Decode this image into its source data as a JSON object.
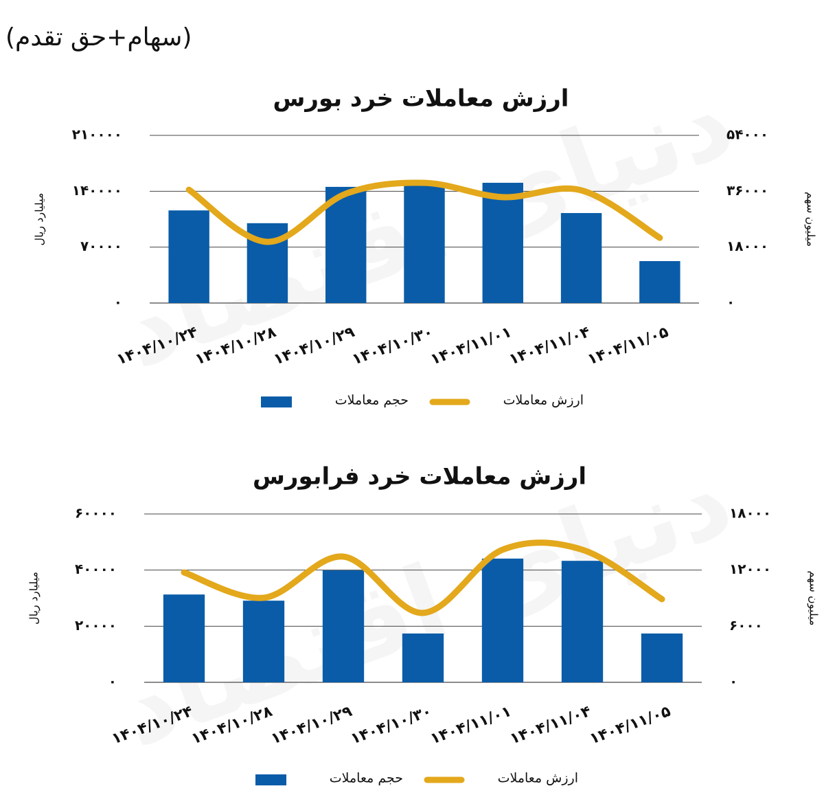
{
  "header": {
    "title": "(سهام+حق تقدم)"
  },
  "watermark": "دنیای اقتصاد",
  "chart_data": [
    {
      "type": "bar",
      "title": "ارزش معاملات خرد بورس",
      "categories": [
        "۱۴۰۴/۱۰/۲۴",
        "۱۴۰۴/۱۰/۲۸",
        "۱۴۰۴/۱۰/۲۹",
        "۱۴۰۴/۱۰/۳۰",
        "۱۴۰۴/۱۱/۰۱",
        "۱۴۰۴/۱۱/۰۴",
        "۱۴۰۴/۱۱/۰۵"
      ],
      "ylabel": "میلیارد ریال",
      "y2label": "میلیون سهم",
      "ylim": [
        0,
        210000
      ],
      "yticks": [
        {
          "value": 0,
          "label": "۰"
        },
        {
          "value": 70000,
          "label": "۷۰۰۰۰"
        },
        {
          "value": 140000,
          "label": "۱۴۰۰۰۰"
        },
        {
          "value": 210000,
          "label": "۲۱۰۰۰۰"
        }
      ],
      "y2lim": [
        0,
        54000
      ],
      "y2ticks": [
        {
          "value": 0,
          "label": "۰"
        },
        {
          "value": 18000,
          "label": "۱۸۰۰۰"
        },
        {
          "value": 36000,
          "label": "۳۶۰۰۰"
        },
        {
          "value": 54000,
          "label": "۵۴۰۰۰"
        }
      ],
      "grid": true,
      "series": [
        {
          "name": "حجم معاملات",
          "type": "bar",
          "color": "#0a5ca8",
          "values": [
            116000,
            100000,
            145500,
            151500,
            150600,
            112700,
            52500
          ]
        },
        {
          "name": "ارزش معاملات",
          "type": "line",
          "axis": "y2",
          "color": "#e3a81b",
          "smooth": true,
          "values": [
            36500,
            19700,
            35200,
            38700,
            34100,
            36300,
            21000
          ]
        }
      ]
    },
    {
      "type": "bar",
      "title": "ارزش معاملات خرد فرابورس",
      "categories": [
        "۱۴۰۴/۱۰/۲۴",
        "۱۴۰۴/۱۰/۲۸",
        "۱۴۰۴/۱۰/۲۹",
        "۱۴۰۴/۱۰/۳۰",
        "۱۴۰۴/۱۱/۰۱",
        "۱۴۰۴/۱۱/۰۴",
        "۱۴۰۴/۱۱/۰۵"
      ],
      "ylabel": "میلیارد ریال",
      "y2label": "میلیون سهم",
      "ylim": [
        0,
        60000
      ],
      "yticks": [
        {
          "value": 0,
          "label": "۰"
        },
        {
          "value": 20000,
          "label": "۲۰۰۰۰"
        },
        {
          "value": 40000,
          "label": "۴۰۰۰۰"
        },
        {
          "value": 60000,
          "label": "۶۰۰۰۰"
        }
      ],
      "y2lim": [
        0,
        18000
      ],
      "y2ticks": [
        {
          "value": 0,
          "label": "۰"
        },
        {
          "value": 6000,
          "label": "۶۰۰۰"
        },
        {
          "value": 12000,
          "label": "۱۲۰۰۰"
        },
        {
          "value": 18000,
          "label": "۱۸۰۰۰"
        }
      ],
      "grid": true,
      "series": [
        {
          "name": "حجم معاملات",
          "type": "bar",
          "color": "#0a5ca8",
          "values": [
            31300,
            29100,
            39900,
            17400,
            44100,
            43300,
            17400
          ]
        },
        {
          "name": "ارزش معاملات",
          "type": "line",
          "axis": "y2",
          "color": "#e3a81b",
          "smooth": true,
          "values": [
            11750,
            9040,
            13440,
            7420,
            14180,
            14180,
            8890
          ]
        }
      ]
    }
  ]
}
